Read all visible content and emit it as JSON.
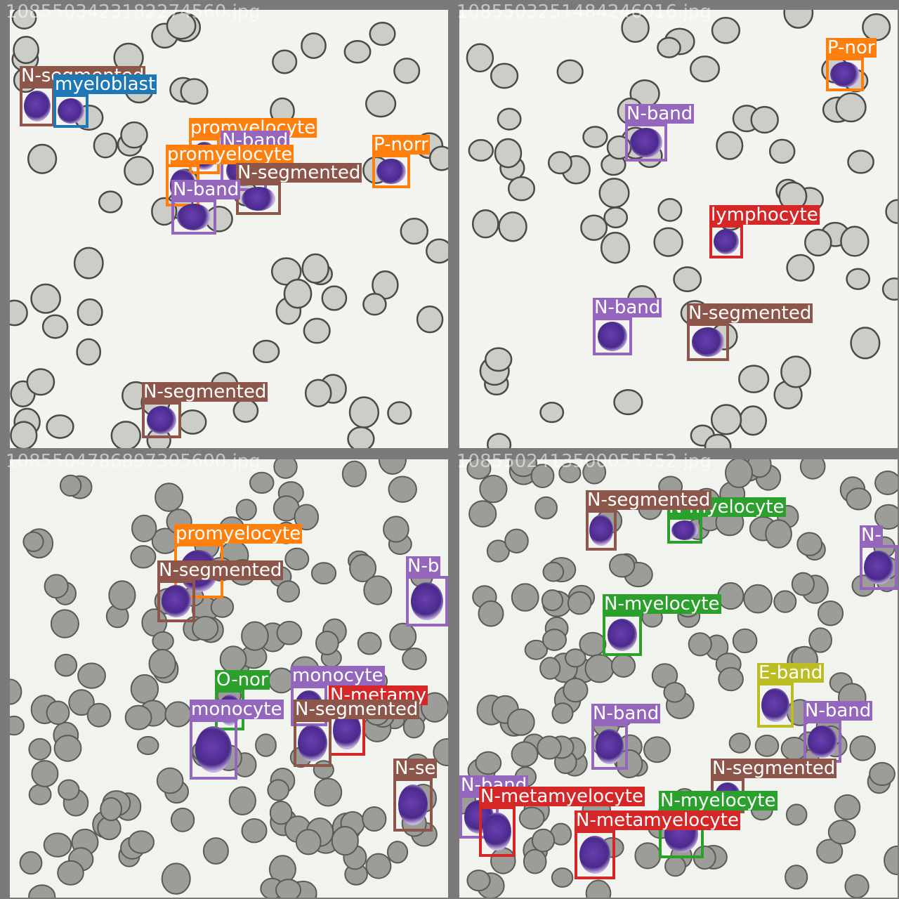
{
  "class_colors": {
    "N-segmented": "#8c564b",
    "N-band": "#9467bd",
    "myeloblast": "#1f77b4",
    "promyelocyte": "#ff7f0e",
    "P-normal": "#ff7f0e",
    "lymphocyte": "#d62728",
    "O-normal": "#2ca02c",
    "monocyte": "#9467bd",
    "N-metamyelocyte": "#d62728",
    "N-myelocyte": "#2ca02c",
    "E-band": "#bcbd22"
  },
  "panels": [
    {
      "filename": "1085503423182274560.jpg",
      "theme": "clean",
      "detections": [
        {
          "label": "N-segmented",
          "cls": "N-segmented"
        },
        {
          "label": "myeloblast",
          "cls": "myeloblast"
        },
        {
          "label": "promyelocyte",
          "cls": "promyelocyte"
        },
        {
          "label": "N-band",
          "cls": "N-band"
        },
        {
          "label": "promyelocyte",
          "cls": "promyelocyte"
        },
        {
          "label": "N-segmented",
          "cls": "N-segmented"
        },
        {
          "label": "P-norr",
          "cls": "P-normal"
        },
        {
          "label": "N-band",
          "cls": "N-band"
        },
        {
          "label": "N-segmented",
          "cls": "N-segmented"
        }
      ]
    },
    {
      "filename": "1085503251484246016.jpg",
      "theme": "clean",
      "detections": [
        {
          "label": "P-nor",
          "cls": "P-normal"
        },
        {
          "label": "N-band",
          "cls": "N-band"
        },
        {
          "label": "lymphocyte",
          "cls": "lymphocyte"
        },
        {
          "label": "N-band",
          "cls": "N-band"
        },
        {
          "label": "N-segmented",
          "cls": "N-segmented"
        }
      ]
    },
    {
      "filename": "1085504786897305600.jpg",
      "theme": "dense",
      "detections": [
        {
          "label": "promyelocyte",
          "cls": "promyelocyte"
        },
        {
          "label": "N-segmented",
          "cls": "N-segmented"
        },
        {
          "label": "N-b",
          "cls": "N-band"
        },
        {
          "label": "O-nor",
          "cls": "O-normal"
        },
        {
          "label": "monocyte",
          "cls": "monocyte"
        },
        {
          "label": "N-metamy",
          "cls": "N-metamyelocyte"
        },
        {
          "label": "monocyte",
          "cls": "monocyte"
        },
        {
          "label": "N-segmented",
          "cls": "N-segmented"
        },
        {
          "label": "N-se",
          "cls": "N-segmented"
        }
      ]
    },
    {
      "filename": "1085502413500055552.jpg",
      "theme": "dense",
      "detections": [
        {
          "label": "N-myelocyte",
          "cls": "N-myelocyte"
        },
        {
          "label": "N-segmented",
          "cls": "N-segmented"
        },
        {
          "label": "N-",
          "cls": "N-band"
        },
        {
          "label": "N-myelocyte",
          "cls": "N-myelocyte"
        },
        {
          "label": "E-band",
          "cls": "E-band"
        },
        {
          "label": "N-band",
          "cls": "N-band"
        },
        {
          "label": "N-band",
          "cls": "N-band"
        },
        {
          "label": "N-segmented",
          "cls": "N-segmented"
        },
        {
          "label": "N-band",
          "cls": "N-band"
        },
        {
          "label": "N-myelocyte",
          "cls": "N-myelocyte"
        },
        {
          "label": "N-metamyelocyte",
          "cls": "N-metamyelocyte"
        },
        {
          "label": "N-metamyelocyte",
          "cls": "N-metamyelocyte"
        }
      ]
    }
  ]
}
